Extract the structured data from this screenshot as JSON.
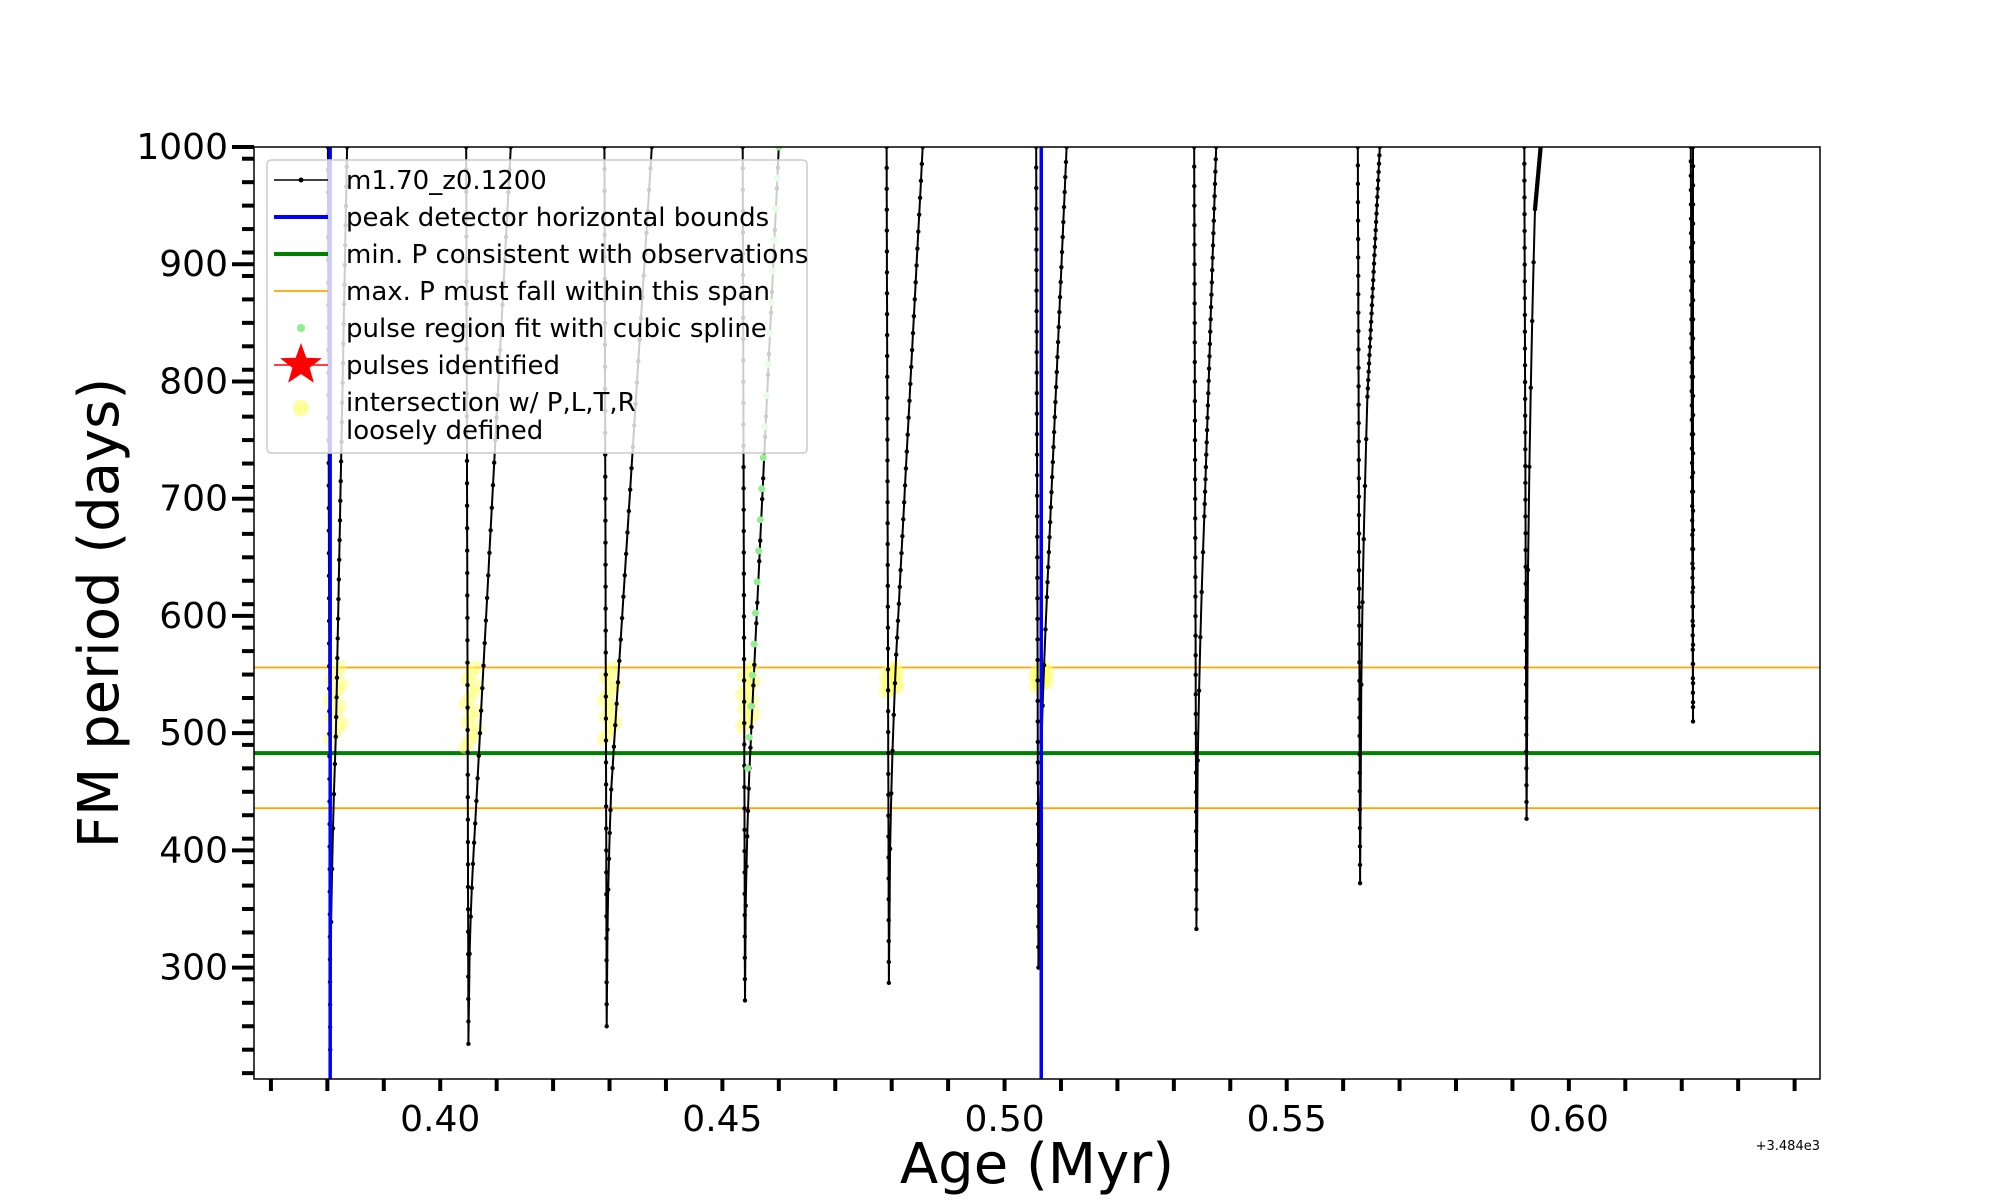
{
  "chart_data": {
    "type": "line",
    "xlabel": "Age (Myr)",
    "ylabel": "FM period (days)",
    "x_offset_text": "+3.484e3",
    "xlim": [
      0.367,
      0.6445
    ],
    "ylim": [
      205,
      1000
    ],
    "x_ticks": [
      0.4,
      0.45,
      0.5,
      0.55,
      0.6
    ],
    "x_tick_labels": [
      "0.40",
      "0.45",
      "0.50",
      "0.55",
      "0.60"
    ],
    "y_ticks": [
      300,
      400,
      500,
      600,
      700,
      800,
      900,
      1000
    ],
    "y_tick_labels": [
      "300",
      "400",
      "500",
      "600",
      "700",
      "800",
      "900",
      "1000"
    ],
    "grid": false,
    "legend_position": "upper-left",
    "legend": [
      {
        "label": "m1.70_z0.1200",
        "kind": "line-marker",
        "color": "#000000"
      },
      {
        "label": "peak detector horizontal bounds",
        "kind": "line",
        "color": "#0000ff"
      },
      {
        "label": "min. P consistent with observations",
        "kind": "line",
        "color": "#008000"
      },
      {
        "label": "max. P must fall within this span",
        "kind": "line",
        "color": "#ffa500"
      },
      {
        "label": "pulse region fit with cubic spline",
        "kind": "dot",
        "color": "#90ee90"
      },
      {
        "label": "pulses identified",
        "kind": "star",
        "color": "#ff0000"
      },
      {
        "label": "intersection w/ P,L,T,R",
        "label2": "loosely defined",
        "kind": "dot",
        "color": "#ffff99"
      }
    ],
    "vertical_lines": [
      {
        "name": "peak detector horizontal bounds",
        "x": 0.3805,
        "color": "#0000ff"
      },
      {
        "name": "peak detector horizontal bounds",
        "x": 0.5065,
        "color": "#0000ff"
      }
    ],
    "horizontal_lines": [
      {
        "name": "min. P consistent with observations",
        "y": 483,
        "color": "#008000"
      },
      {
        "name": "max. P must fall within this span",
        "y": 436,
        "color": "#ffa500"
      },
      {
        "name": "max. P must fall within this span",
        "y": 556,
        "color": "#ffa500"
      }
    ],
    "pulses": [
      {
        "x_min": 0.3805,
        "p_min": 230,
        "x_top": 0.3835,
        "p_top": 1000
      },
      {
        "x_min": 0.405,
        "p_min": 235,
        "x_top": 0.4125,
        "p_top": 1000
      },
      {
        "x_min": 0.4295,
        "p_min": 250,
        "x_top": 0.4375,
        "p_top": 1000
      },
      {
        "x_min": 0.454,
        "p_min": 272,
        "x_top": 0.46,
        "p_top": 1000
      },
      {
        "x_min": 0.4795,
        "p_min": 287,
        "x_top": 0.4855,
        "p_top": 1000
      },
      {
        "x_min": 0.506,
        "p_min": 300,
        "x_top": 0.511,
        "p_top": 1000
      },
      {
        "x_min": 0.534,
        "p_min": 333,
        "x_top": 0.5375,
        "p_top": 1000
      },
      {
        "x_min": 0.563,
        "p_min": 372,
        "x_top": 0.5665,
        "p_top": 1000
      },
      {
        "x_min": 0.5925,
        "p_min": 427,
        "x_top": 0.595,
        "p_top": 1000
      },
      {
        "x_min": 0.622,
        "p_min": 510,
        "x_top": 0.622,
        "p_top": 1000
      }
    ],
    "bounce_minima": [
      {
        "x": 0.3815,
        "p": 497
      },
      {
        "x": 0.4062,
        "p": 423
      },
      {
        "x": 0.4303,
        "p": 452
      },
      {
        "x": 0.4548,
        "p": 470
      },
      {
        "x": 0.4808,
        "p": 567
      },
      {
        "x": 0.5075,
        "p": 616
      },
      {
        "x": 0.5354,
        "p": 685
      },
      {
        "x": 0.5643,
        "p": 787
      },
      {
        "x": 0.594,
        "p": 947
      }
    ],
    "spline_region": {
      "x_start": 0.4545,
      "x_end": 0.46,
      "p_start": 470,
      "p_end": 1000
    },
    "intersection_clusters": [
      {
        "x": 0.3815,
        "p_low": 495,
        "p_high": 556
      },
      {
        "x": 0.4055,
        "p_low": 488,
        "p_high": 556
      },
      {
        "x": 0.43,
        "p_low": 495,
        "p_high": 556
      },
      {
        "x": 0.4545,
        "p_low": 505,
        "p_high": 556
      },
      {
        "x": 0.48,
        "p_low": 535,
        "p_high": 556
      },
      {
        "x": 0.5065,
        "p_low": 540,
        "p_high": 556
      }
    ]
  }
}
